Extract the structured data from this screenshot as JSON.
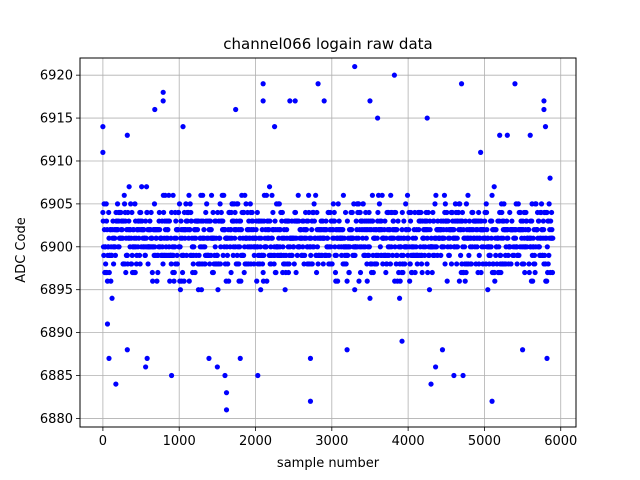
{
  "chart_data": {
    "type": "scatter",
    "title": "channel066 logain raw data",
    "xlabel": "sample number",
    "ylabel": "ADC Code",
    "xlim": [
      -300,
      6200
    ],
    "ylim": [
      6879,
      6922
    ],
    "xticks": [
      0,
      1000,
      2000,
      3000,
      4000,
      5000,
      6000
    ],
    "yticks": [
      6880,
      6885,
      6890,
      6895,
      6900,
      6905,
      6910,
      6915,
      6920
    ],
    "grid": true,
    "marker_color": "#0000ff",
    "n_samples": 5900,
    "x_step": 1,
    "y_dense_band": [
      6896,
      6906
    ],
    "y_sparse_band": [
      6891,
      6911
    ],
    "outliers": [
      {
        "x": 0,
        "y": 6914
      },
      {
        "x": 0,
        "y": 6911
      },
      {
        "x": 60,
        "y": 6891
      },
      {
        "x": 80,
        "y": 6887
      },
      {
        "x": 170,
        "y": 6884
      },
      {
        "x": 320,
        "y": 6888
      },
      {
        "x": 320,
        "y": 6913
      },
      {
        "x": 560,
        "y": 6886
      },
      {
        "x": 580,
        "y": 6887
      },
      {
        "x": 680,
        "y": 6916
      },
      {
        "x": 790,
        "y": 6917
      },
      {
        "x": 790,
        "y": 6918
      },
      {
        "x": 900,
        "y": 6885
      },
      {
        "x": 1050,
        "y": 6914
      },
      {
        "x": 1390,
        "y": 6887
      },
      {
        "x": 1500,
        "y": 6886
      },
      {
        "x": 1600,
        "y": 6885
      },
      {
        "x": 1620,
        "y": 6883
      },
      {
        "x": 1620,
        "y": 6881
      },
      {
        "x": 1740,
        "y": 6916
      },
      {
        "x": 1800,
        "y": 6887
      },
      {
        "x": 2030,
        "y": 6885
      },
      {
        "x": 2100,
        "y": 6917
      },
      {
        "x": 2100,
        "y": 6919
      },
      {
        "x": 2250,
        "y": 6914
      },
      {
        "x": 2450,
        "y": 6917
      },
      {
        "x": 2520,
        "y": 6917
      },
      {
        "x": 2720,
        "y": 6882
      },
      {
        "x": 2720,
        "y": 6887
      },
      {
        "x": 2820,
        "y": 6919
      },
      {
        "x": 2900,
        "y": 6917
      },
      {
        "x": 3200,
        "y": 6888
      },
      {
        "x": 3300,
        "y": 6921
      },
      {
        "x": 3500,
        "y": 6917
      },
      {
        "x": 3600,
        "y": 6915
      },
      {
        "x": 3820,
        "y": 6920
      },
      {
        "x": 3920,
        "y": 6889
      },
      {
        "x": 4250,
        "y": 6915
      },
      {
        "x": 4300,
        "y": 6884
      },
      {
        "x": 4360,
        "y": 6886
      },
      {
        "x": 4450,
        "y": 6888
      },
      {
        "x": 4600,
        "y": 6885
      },
      {
        "x": 4700,
        "y": 6919
      },
      {
        "x": 4720,
        "y": 6885
      },
      {
        "x": 4950,
        "y": 6911
      },
      {
        "x": 5100,
        "y": 6882
      },
      {
        "x": 5200,
        "y": 6913
      },
      {
        "x": 5300,
        "y": 6913
      },
      {
        "x": 5400,
        "y": 6919
      },
      {
        "x": 5500,
        "y": 6888
      },
      {
        "x": 5600,
        "y": 6913
      },
      {
        "x": 5780,
        "y": 6917
      },
      {
        "x": 5780,
        "y": 6916
      },
      {
        "x": 5800,
        "y": 6914
      },
      {
        "x": 5820,
        "y": 6887
      }
    ]
  }
}
